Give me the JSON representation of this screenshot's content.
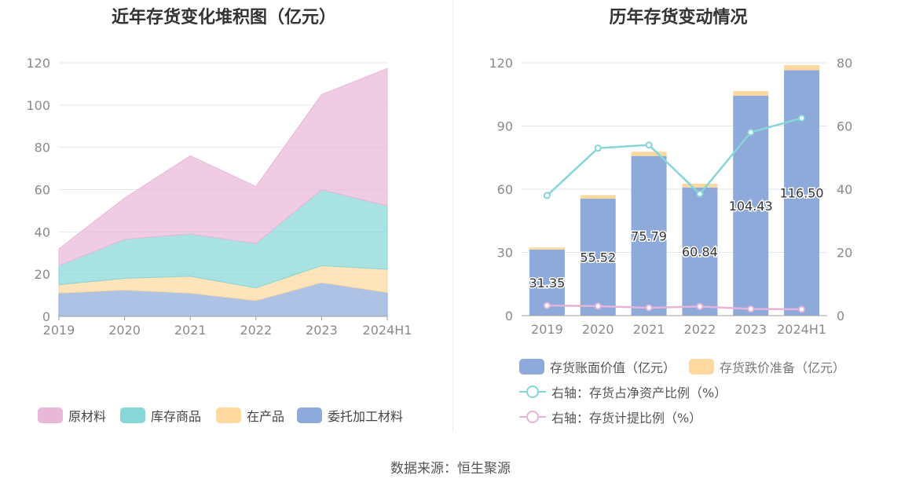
{
  "left_title": "近年存货变化堆积图（亿元）",
  "right_title": "历年存货变动情况",
  "source": "数据来源：恒生聚源",
  "chart_data": [
    {
      "type": "area",
      "stacked": true,
      "title": "近年存货变化堆积图（亿元）",
      "categories": [
        "2019",
        "2020",
        "2021",
        "2022",
        "2023",
        "2024H1"
      ],
      "ylim": [
        0,
        120
      ],
      "yticks": [
        "0",
        "20",
        "40",
        "60",
        "80",
        "100",
        "120"
      ],
      "grid": true,
      "legend_position": "bottom",
      "series": [
        {
          "name": "委托加工材料",
          "color": "#8eaadb",
          "values": [
            11,
            12.5,
            11,
            7.5,
            16,
            11.3
          ]
        },
        {
          "name": "在产品",
          "color": "#fdd9a0",
          "values": [
            4,
            5.5,
            8,
            6,
            8,
            11
          ]
        },
        {
          "name": "库存商品",
          "color": "#87d7d7",
          "values": [
            9,
            18.5,
            20,
            21,
            36,
            30
          ]
        },
        {
          "name": "原材料",
          "color": "#e9b8d9",
          "values": [
            8,
            19.5,
            37,
            27,
            45,
            65
          ]
        }
      ]
    },
    {
      "type": "bar",
      "stacked": true,
      "title": "历年存货变动情况",
      "categories": [
        "2019",
        "2020",
        "2021",
        "2022",
        "2023",
        "2024H1"
      ],
      "ylim": [
        0,
        120
      ],
      "yticks": [
        "0",
        "30",
        "60",
        "90",
        "120"
      ],
      "y2lim": [
        0,
        80
      ],
      "y2ticks": [
        "0",
        "20",
        "40",
        "60",
        "80"
      ],
      "grid": true,
      "legend_position": "bottom",
      "bar_series": [
        {
          "name": "存货账面价值（亿元）",
          "color": "#8eaadb",
          "values": [
            31.35,
            55.52,
            75.79,
            60.84,
            104.43,
            116.5
          ],
          "labels": [
            "31.35",
            "55.52",
            "75.79",
            "60.84",
            "104.43",
            "116.50"
          ]
        },
        {
          "name": "存货跌价准备（亿元）",
          "color": "#fdd9a0",
          "values": [
            1.0,
            1.7,
            2.0,
            1.8,
            2.2,
            2.4
          ]
        }
      ],
      "line_series": [
        {
          "name": "右轴：存货占净资产比例（%）",
          "color": "#86d5d7",
          "axis": "right",
          "values": [
            38,
            53,
            54,
            38.5,
            58,
            62.5
          ]
        },
        {
          "name": "右轴：存货计提比例（%）",
          "color": "#e6b3d9",
          "axis": "right",
          "values": [
            3.2,
            3.0,
            2.5,
            2.9,
            2.1,
            2.0
          ]
        }
      ]
    }
  ]
}
